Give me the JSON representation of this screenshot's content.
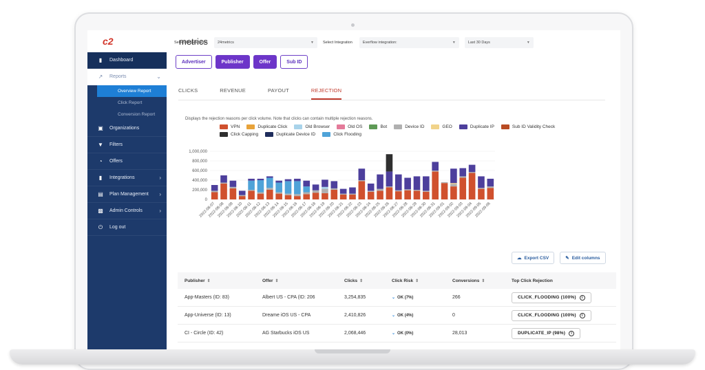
{
  "logo": {
    "mark": "c2",
    "suffix": "metrics"
  },
  "sidebar": {
    "items": [
      {
        "label": "Dashboard",
        "icon": "bar-chart-icon"
      },
      {
        "label": "Reports",
        "icon": "trend-icon"
      },
      {
        "label": "Organizations",
        "icon": "org-icon"
      },
      {
        "label": "Filters",
        "icon": "filter-icon"
      },
      {
        "label": "Offers",
        "icon": "pie-icon"
      },
      {
        "label": "Integrations",
        "icon": "bar-chart-icon"
      },
      {
        "label": "Plan Management",
        "icon": "card-icon"
      },
      {
        "label": "Admin Controls",
        "icon": "briefcase-icon"
      },
      {
        "label": "Log out",
        "icon": "power-icon"
      }
    ],
    "reports_sub": [
      "Overview Report",
      "Click Report",
      "Conversion Report"
    ]
  },
  "filters": {
    "org_label": "Select Organization",
    "org_value": "24metrics",
    "integration_label": "Select Integration",
    "integration_value": "Everflow integration:",
    "range_value": "Last 30 Days"
  },
  "view_buttons": [
    "Advertiser",
    "Publisher",
    "Offer",
    "Sub ID"
  ],
  "tabs": [
    "CLICKS",
    "REVENUE",
    "PAYOUT",
    "REJECTION"
  ],
  "chart_description": "Displays the rejection reasons per click volume. Note that clicks can contain multiple rejection reasons.",
  "colors": {
    "VPN": "#d0512e",
    "Duplicate Click": "#e8a33a",
    "Old Browser": "#a9d3ea",
    "Old OS": "#e47b9a",
    "Bot": "#5e9a56",
    "Device ID": "#b0b0b0",
    "GEO": "#f1d38a",
    "Duplicate IP": "#4d3f9c",
    "Sub ID Validity Check": "#b84b23",
    "Click Capping": "#2f2f2f",
    "Duplicate Device ID": "#1f2d5c",
    "Click Flooding": "#4fa3d8"
  },
  "chart_data": {
    "type": "bar",
    "stacked": true,
    "title": "",
    "xlabel": "",
    "ylabel": "",
    "ylim": [
      0,
      1000000
    ],
    "yticks": [
      "0",
      "200,000",
      "400,000",
      "600,000",
      "800,000",
      "1,000,000"
    ],
    "legend": [
      "VPN",
      "Duplicate Click",
      "Old Browser",
      "Old OS",
      "Bot",
      "Device ID",
      "GEO",
      "Duplicate IP",
      "Sub ID Validity Check",
      "Click Capping",
      "Duplicate Device ID",
      "Click Flooding"
    ],
    "categories": [
      "2022-08-07",
      "2022-08-08",
      "2022-08-09",
      "2022-08-10",
      "2022-08-11",
      "2022-08-12",
      "2022-08-13",
      "2022-08-14",
      "2022-08-15",
      "2022-08-16",
      "2022-08-17",
      "2022-08-18",
      "2022-08-19",
      "2022-08-20",
      "2022-08-21",
      "2022-08-22",
      "2022-08-23",
      "2022-08-24",
      "2022-08-25",
      "2022-08-26",
      "2022-08-27",
      "2022-08-28",
      "2022-08-29",
      "2022-08-30",
      "2022-08-31",
      "2022-09-01",
      "2022-09-02",
      "2022-09-03",
      "2022-09-04",
      "2022-09-05",
      "2022-09-06"
    ],
    "series": [
      {
        "name": "VPN",
        "values": [
          150000,
          330000,
          230000,
          70000,
          180000,
          120000,
          200000,
          120000,
          90000,
          70000,
          110000,
          140000,
          130000,
          200000,
          100000,
          100000,
          380000,
          160000,
          180000,
          250000,
          170000,
          190000,
          180000,
          160000,
          580000,
          340000,
          270000,
          450000,
          550000,
          220000,
          240000
        ]
      },
      {
        "name": "Device ID",
        "values": [
          30000,
          20000,
          30000,
          20000,
          20000,
          30000,
          40000,
          30000,
          30000,
          40000,
          40000,
          50000,
          90000,
          30000,
          20000,
          20000,
          20000,
          20000,
          40000,
          20000,
          20000,
          20000,
          20000,
          20000,
          20000,
          20000,
          50000,
          30000,
          20000,
          20000,
          30000
        ]
      },
      {
        "name": "GEO",
        "values": [
          0,
          0,
          0,
          0,
          0,
          0,
          0,
          0,
          0,
          0,
          0,
          0,
          0,
          0,
          0,
          0,
          0,
          0,
          0,
          0,
          0,
          0,
          0,
          0,
          0,
          0,
          20000,
          0,
          0,
          0,
          0
        ]
      },
      {
        "name": "Old Browser",
        "values": [
          0,
          0,
          0,
          0,
          0,
          0,
          0,
          0,
          0,
          0,
          0,
          0,
          40000,
          0,
          0,
          0,
          0,
          0,
          0,
          0,
          0,
          0,
          0,
          0,
          0,
          0,
          0,
          0,
          0,
          0,
          0
        ]
      },
      {
        "name": "Click Flooding",
        "values": [
          0,
          0,
          0,
          0,
          190000,
          250000,
          210000,
          200000,
          260000,
          270000,
          120000,
          0,
          0,
          0,
          0,
          0,
          0,
          0,
          0,
          0,
          0,
          0,
          0,
          0,
          0,
          0,
          0,
          0,
          0,
          0,
          0
        ]
      },
      {
        "name": "Duplicate IP",
        "values": [
          120000,
          150000,
          130000,
          90000,
          40000,
          30000,
          30000,
          40000,
          40000,
          50000,
          120000,
          120000,
          150000,
          150000,
          100000,
          130000,
          240000,
          150000,
          300000,
          310000,
          330000,
          240000,
          280000,
          300000,
          180000,
          0,
          300000,
          170000,
          150000,
          240000,
          160000
        ]
      },
      {
        "name": "Click Capping",
        "values": [
          0,
          0,
          0,
          0,
          0,
          0,
          0,
          0,
          0,
          0,
          0,
          0,
          0,
          0,
          0,
          0,
          0,
          0,
          0,
          360000,
          0,
          0,
          0,
          0,
          0,
          0,
          0,
          0,
          0,
          0,
          0
        ]
      }
    ]
  },
  "actions": {
    "export": "Export CSV",
    "edit": "Edit columns"
  },
  "table": {
    "headers": [
      "Publisher",
      "Offer",
      "Clicks",
      "Click Risk",
      "Conversions",
      "Top Click Rejection"
    ],
    "rows": [
      {
        "publisher": "App-Masters (ID: 83)",
        "offer": "Albert US - CPA (ID: 206",
        "clicks": "3,254,835",
        "risk": "OK (7%)",
        "conversions": "266",
        "rejection": "CLICK_FLOODING (100%)"
      },
      {
        "publisher": "App-Universe (ID: 13)",
        "offer": "Dreame iOS US - CPA",
        "clicks": "2,410,826",
        "risk": "OK (4%)",
        "conversions": "0",
        "rejection": "CLICK_FLOODING (100%)"
      },
      {
        "publisher": "CI - Circle (ID: 42)",
        "offer": "AG Starbucks iOS US",
        "clicks": "2,068,446",
        "risk": "OK (0%)",
        "conversions": "28,013",
        "rejection": "DUPLICATE_IP (98%)"
      }
    ]
  }
}
